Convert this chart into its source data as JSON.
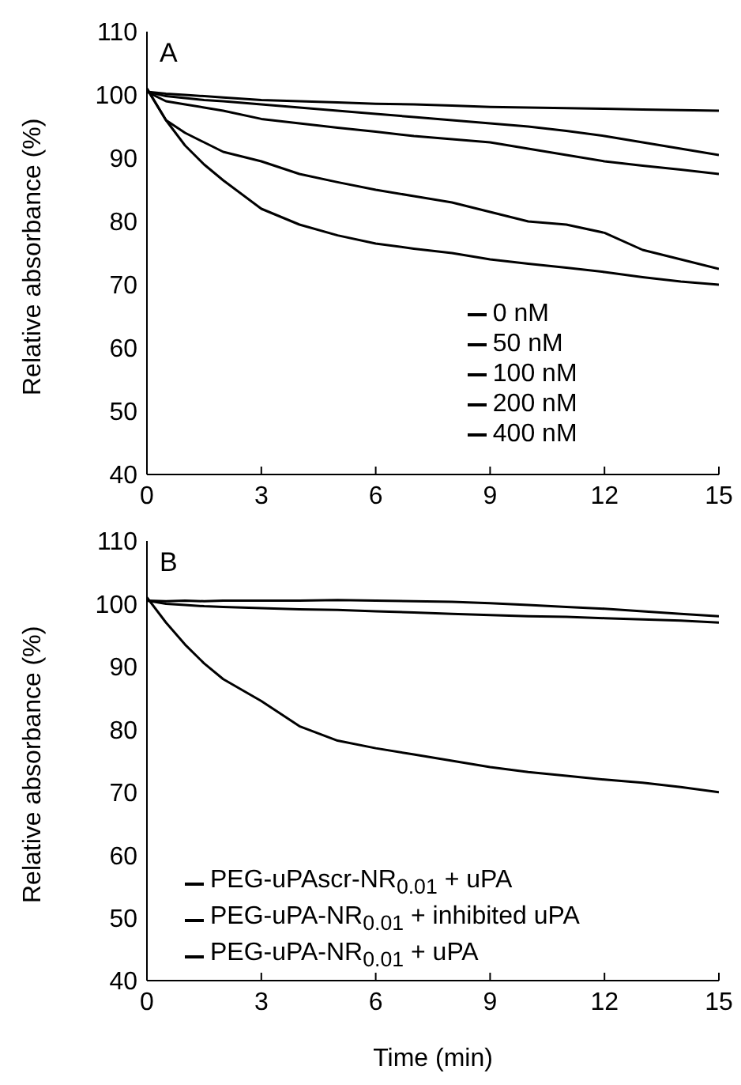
{
  "chart_data": [
    {
      "type": "line",
      "ylabel": "Relative absorbance (%)",
      "annotations": [
        "A"
      ],
      "xlim": [
        0,
        15
      ],
      "xticks": [
        0,
        3,
        6,
        9,
        12,
        15
      ],
      "ylim": [
        40,
        110
      ],
      "yticks": [
        40,
        50,
        60,
        70,
        80,
        90,
        100,
        110
      ],
      "grid": false,
      "legend": "bottom right",
      "marker": "none",
      "line_style": "solid",
      "x": [
        0,
        0.5,
        1,
        1.5,
        2,
        3,
        4,
        5,
        6,
        7,
        8,
        9,
        10,
        11,
        12,
        13,
        14,
        15
      ],
      "series": [
        {
          "name": "0 nM",
          "color": "#000000",
          "values": [
            100.5,
            100.2,
            100,
            99.8,
            99.6,
            99.2,
            99,
            98.8,
            98.6,
            98.5,
            98.3,
            98.1,
            98,
            97.9,
            97.8,
            97.7,
            97.6,
            97.5
          ]
        },
        {
          "name": "50 nM",
          "color": "#000000",
          "values": [
            100.5,
            99.8,
            99.5,
            99.2,
            99,
            98.5,
            98,
            97.5,
            97,
            96.5,
            96,
            95.5,
            95,
            94.3,
            93.5,
            92.5,
            91.5,
            90.5
          ]
        },
        {
          "name": "100 nM",
          "color": "#000000",
          "values": [
            100.5,
            99,
            98.5,
            98,
            97.5,
            96.2,
            95.5,
            94.8,
            94.2,
            93.5,
            93,
            92.5,
            91.5,
            90.5,
            89.5,
            88.8,
            88.2,
            87.5
          ]
        },
        {
          "name": "200 nM",
          "color": "#000000",
          "values": [
            101,
            96,
            94,
            92.5,
            91,
            89.5,
            87.5,
            86.2,
            85,
            84,
            83,
            81.5,
            80,
            79.5,
            78.2,
            75.5,
            74,
            72.5
          ]
        },
        {
          "name": "400 nM",
          "color": "#000000",
          "values": [
            101,
            96,
            92,
            89,
            86.5,
            82,
            79.5,
            77.8,
            76.5,
            75.7,
            75,
            74,
            73.3,
            72.7,
            72,
            71.2,
            70.5,
            70
          ]
        }
      ]
    },
    {
      "type": "line",
      "xlabel": "Time (min)",
      "ylabel": "Relative absorbance (%)",
      "annotations": [
        "B"
      ],
      "xlim": [
        0,
        15
      ],
      "xticks": [
        0,
        3,
        6,
        9,
        12,
        15
      ],
      "ylim": [
        40,
        110
      ],
      "yticks": [
        40,
        50,
        60,
        70,
        80,
        90,
        100,
        110
      ],
      "grid": false,
      "legend": "bottom left",
      "marker": "none",
      "line_style": "solid",
      "x": [
        0,
        0.5,
        1,
        1.5,
        2,
        3,
        4,
        5,
        6,
        7,
        8,
        9,
        10,
        11,
        12,
        13,
        14,
        15
      ],
      "series": [
        {
          "name": "PEG-uPAscr-NR$_{0.01}$ + uPA",
          "color": "#000000",
          "values": [
            100.5,
            100.4,
            100.5,
            100.4,
            100.5,
            100.5,
            100.5,
            100.6,
            100.5,
            100.4,
            100.3,
            100.1,
            99.8,
            99.5,
            99.2,
            98.8,
            98.4,
            98
          ]
        },
        {
          "name": "PEG-uPA-NR$_{0.01}$ + inhibited uPA",
          "color": "#000000",
          "values": [
            100.5,
            100,
            99.8,
            99.6,
            99.5,
            99.3,
            99.1,
            99,
            98.8,
            98.6,
            98.4,
            98.2,
            98,
            97.9,
            97.7,
            97.5,
            97.3,
            97
          ]
        },
        {
          "name": "PEG-uPA-NR$_{0.01}$ + uPA",
          "color": "#000000",
          "values": [
            101,
            97,
            93.5,
            90.5,
            88,
            84.5,
            80.5,
            78.2,
            77,
            76,
            75,
            74,
            73.2,
            72.6,
            72,
            71.5,
            70.8,
            70
          ]
        }
      ]
    }
  ]
}
